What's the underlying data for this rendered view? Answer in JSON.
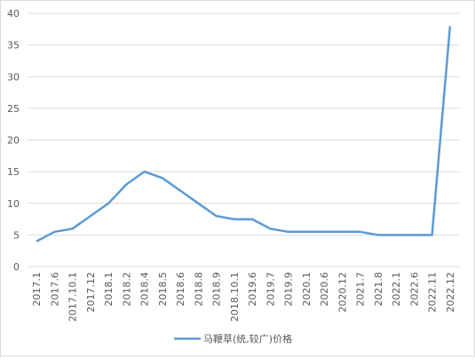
{
  "chart_data": {
    "type": "line",
    "categories": [
      "2017.1",
      "2017.6",
      "2017.10.1",
      "2017.12",
      "2018.1",
      "2018.2",
      "2018.4",
      "2018.5",
      "2018.6",
      "2018.8",
      "2018.9",
      "2018.10.1",
      "2019.6",
      "2019.7",
      "2019.9",
      "2020.1",
      "2020.6",
      "2020.12",
      "2021.7",
      "2021.8",
      "2022.1",
      "2022.6",
      "2022.11",
      "2022.12"
    ],
    "series": [
      {
        "name": "马鞭草(统,较广)价格",
        "color": "#5b9bd5",
        "values": [
          4,
          5.5,
          6,
          8,
          10,
          13,
          15,
          14,
          12,
          10,
          8,
          7.5,
          7.5,
          6,
          5.5,
          5.5,
          5.5,
          5.5,
          5.5,
          5,
          5,
          5,
          5,
          38
        ]
      }
    ],
    "ylim": [
      0,
      40
    ],
    "yticks": [
      0,
      5,
      10,
      15,
      20,
      25,
      30,
      35,
      40
    ],
    "grid": true,
    "legend": "bottom"
  }
}
